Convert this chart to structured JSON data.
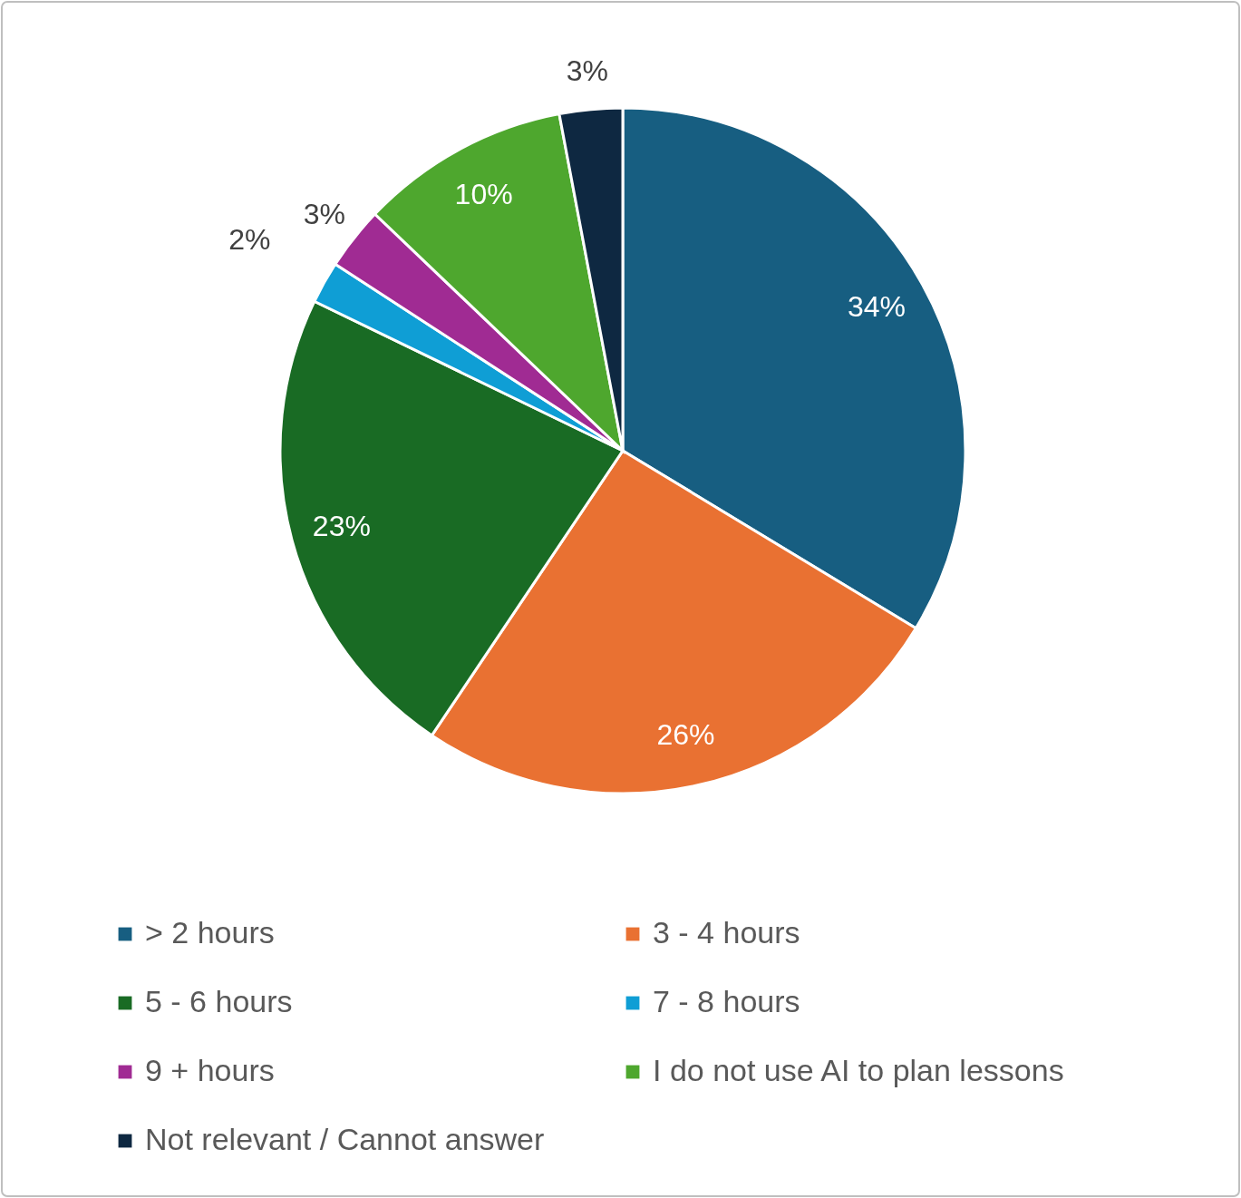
{
  "chart_data": {
    "type": "pie",
    "categories": [
      "> 2 hours",
      "3 - 4 hours",
      "5 - 6 hours",
      "7 - 8 hours",
      "9 + hours",
      "I do not use AI to plan lessons",
      "Not relevant / Cannot answer"
    ],
    "values": [
      34,
      26,
      23,
      2,
      3,
      10,
      3
    ],
    "colors": [
      "#175e81",
      "#e97132",
      "#196b24",
      "#0f9ed5",
      "#a02b93",
      "#4ea72e",
      "#0e2841"
    ],
    "value_labels": [
      "34%",
      "26%",
      "23%",
      "2%",
      "3%",
      "10%",
      "3%"
    ],
    "legend": "bottom"
  }
}
